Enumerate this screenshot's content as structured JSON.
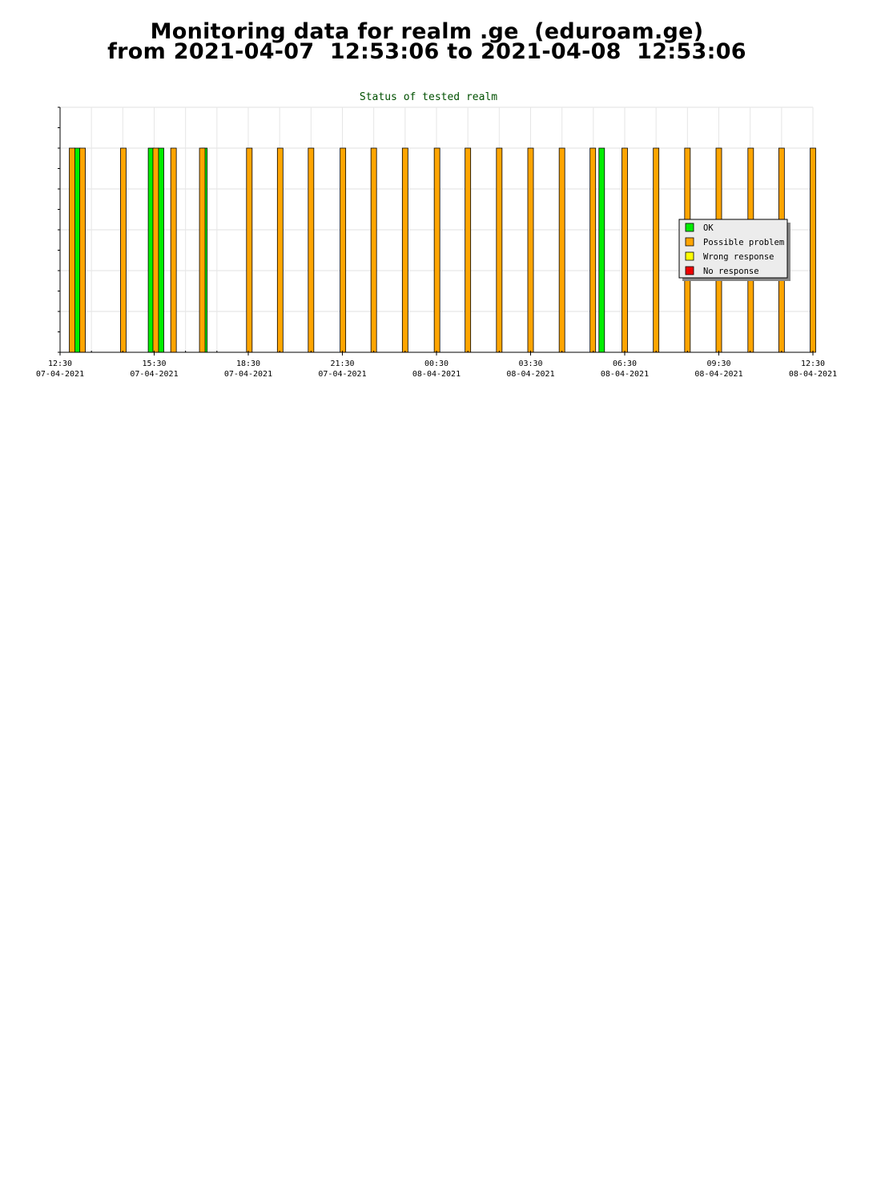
{
  "page": {
    "title_line1": "Monitoring data for realm .ge  (eduroam.ge)",
    "title_line2": "from 2021-04-07  12:53:06 to 2021-04-08  12:53:06"
  },
  "chart_data": {
    "type": "bar",
    "title": "Status of tested realm",
    "x_range": [
      "2021-04-07 12:30",
      "2021-04-08 12:30"
    ],
    "x_ticks": [
      {
        "time": "12:30",
        "date": "07-04-2021"
      },
      {
        "time": "15:30",
        "date": "07-04-2021"
      },
      {
        "time": "18:30",
        "date": "07-04-2021"
      },
      {
        "time": "21:30",
        "date": "07-04-2021"
      },
      {
        "time": "00:30",
        "date": "08-04-2021"
      },
      {
        "time": "03:30",
        "date": "08-04-2021"
      },
      {
        "time": "06:30",
        "date": "08-04-2021"
      },
      {
        "time": "09:30",
        "date": "08-04-2021"
      },
      {
        "time": "12:30",
        "date": "08-04-2021"
      }
    ],
    "ylim": [
      0,
      6
    ],
    "grid": true,
    "legend_position": "right",
    "series": [
      {
        "name": "OK",
        "color": "#00ee00",
        "x": [
          "2021-04-07 13:03",
          "2021-04-07 15:24",
          "2021-04-07 15:43",
          "2021-04-07 17:06",
          "2021-04-08 05:46"
        ],
        "values": [
          5,
          5,
          5,
          5,
          5
        ]
      },
      {
        "name": "Possible problem",
        "color": "#ffa500",
        "x": [
          "2021-04-07 12:53",
          "2021-04-07 13:13",
          "2021-04-07 14:31",
          "2021-04-07 15:33",
          "2021-04-07 16:07",
          "2021-04-07 17:02",
          "2021-04-07 18:32",
          "2021-04-07 19:31",
          "2021-04-07 20:30",
          "2021-04-07 21:31",
          "2021-04-07 22:30",
          "2021-04-07 23:30",
          "2021-04-08 00:31",
          "2021-04-08 01:30",
          "2021-04-08 02:30",
          "2021-04-08 03:30",
          "2021-04-08 04:30",
          "2021-04-08 05:29",
          "2021-04-08 06:30",
          "2021-04-08 07:30",
          "2021-04-08 08:30",
          "2021-04-08 09:30",
          "2021-04-08 10:31",
          "2021-04-08 11:30",
          "2021-04-08 12:30"
        ],
        "values": [
          5,
          5,
          5,
          5,
          5,
          5,
          5,
          5,
          5,
          5,
          5,
          5,
          5,
          5,
          5,
          5,
          5,
          5,
          5,
          5,
          5,
          5,
          5,
          5,
          5
        ]
      },
      {
        "name": "Wrong response",
        "color": "#ffff00",
        "x": [],
        "values": []
      },
      {
        "name": "No response",
        "color": "#ee0000",
        "x": [],
        "values": []
      }
    ]
  }
}
